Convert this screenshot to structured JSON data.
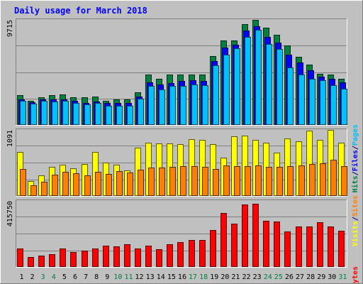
{
  "chart_data": {
    "type": "bar",
    "title": "Daily usage for March 2018",
    "days": [
      "1",
      "2",
      "3",
      "4",
      "5",
      "6",
      "7",
      "8",
      "9",
      "10",
      "11",
      "12",
      "13",
      "14",
      "15",
      "16",
      "17",
      "18",
      "19",
      "20",
      "21",
      "22",
      "23",
      "24",
      "25",
      "26",
      "27",
      "28",
      "29",
      "30",
      "31"
    ],
    "weekend_days": [
      "3",
      "4",
      "10",
      "11",
      "17",
      "18",
      "24",
      "25",
      "31"
    ],
    "panels": [
      {
        "id": "hits",
        "scale_label": "9715",
        "ymax": 9715,
        "legend": [
          {
            "text": "Hits",
            "color": "#008040"
          },
          {
            "text": "/",
            "color": "#000080"
          },
          {
            "text": "Files",
            "color": "#0000ff"
          },
          {
            "text": "/",
            "color": "#000080"
          },
          {
            "text": "Pages",
            "color": "#00c0ff"
          }
        ],
        "series": [
          {
            "name": "Hits",
            "color": "#008040",
            "values": [
              2700,
              2200,
              2500,
              2700,
              2800,
              2500,
              2500,
              2550,
              2200,
              2300,
              2300,
              3000,
              4600,
              4200,
              4650,
              4600,
              4600,
              4600,
              6350,
              7800,
              7800,
              9300,
              9715,
              9000,
              8300,
              7350,
              6300,
              5550,
              4700,
              4650,
              4200
            ]
          },
          {
            "name": "Files",
            "color": "#0000ff",
            "values": [
              2300,
              2050,
              2300,
              2300,
              2300,
              2150,
              2000,
              2100,
              1950,
              1950,
              1950,
              2600,
              3900,
              3700,
              3850,
              4000,
              4100,
              4000,
              5900,
              7150,
              7400,
              8750,
              9150,
              8150,
              7600,
              6500,
              5750,
              5000,
              4450,
              4200,
              3900
            ]
          },
          {
            "name": "Pages",
            "color": "#00c0ff",
            "values": [
              2150,
              1900,
              2150,
              2100,
              2150,
              2000,
              1850,
              1950,
              1700,
              1750,
              1750,
              2400,
              3550,
              3250,
              3550,
              3550,
              3700,
              3650,
              5500,
              6500,
              7050,
              8100,
              8800,
              7450,
              7000,
              5300,
              4650,
              4200,
              4100,
              3650,
              3300
            ]
          }
        ]
      },
      {
        "id": "visits",
        "scale_label": "1091",
        "ymax": 1091,
        "legend": [
          {
            "text": "Visits",
            "color": "#ffff00"
          },
          {
            "text": "/",
            "color": "#000080"
          },
          {
            "text": "Sites",
            "color": "#ff8000"
          }
        ],
        "series": [
          {
            "name": "Visits",
            "color": "#ffff00",
            "values": [
              720,
              240,
              330,
              480,
              510,
              450,
              520,
              720,
              550,
              510,
              420,
              790,
              880,
              860,
              870,
              850,
              940,
              930,
              850,
              630,
              980,
              1000,
              920,
              880,
              710,
              950,
              900,
              1080,
              920,
              1091,
              880
            ]
          },
          {
            "name": "Sites",
            "color": "#ff8000",
            "values": [
              440,
              170,
              220,
              340,
              390,
              370,
              330,
              390,
              360,
              400,
              380,
              430,
              460,
              460,
              480,
              490,
              490,
              480,
              440,
              500,
              490,
              490,
              500,
              480,
              480,
              490,
              500,
              520,
              530,
              590,
              490
            ]
          }
        ]
      },
      {
        "id": "kbytes",
        "scale_label": "415750",
        "ymax": 415750,
        "legend": [
          {
            "text": "KBytes",
            "color": "#ff0000"
          }
        ],
        "series": [
          {
            "name": "KBytes",
            "color": "#ff0000",
            "values": [
              115000,
              60000,
              68000,
              78000,
              113000,
              89000,
              101000,
              113000,
              130000,
              125000,
              140000,
              113000,
              130000,
              109000,
              138000,
              154000,
              168000,
              168000,
              232000,
              340000,
              273000,
              392000,
              398000,
              288000,
              286000,
              222000,
              252000,
              252000,
              281000,
              252000,
              225000
            ]
          }
        ]
      }
    ]
  }
}
